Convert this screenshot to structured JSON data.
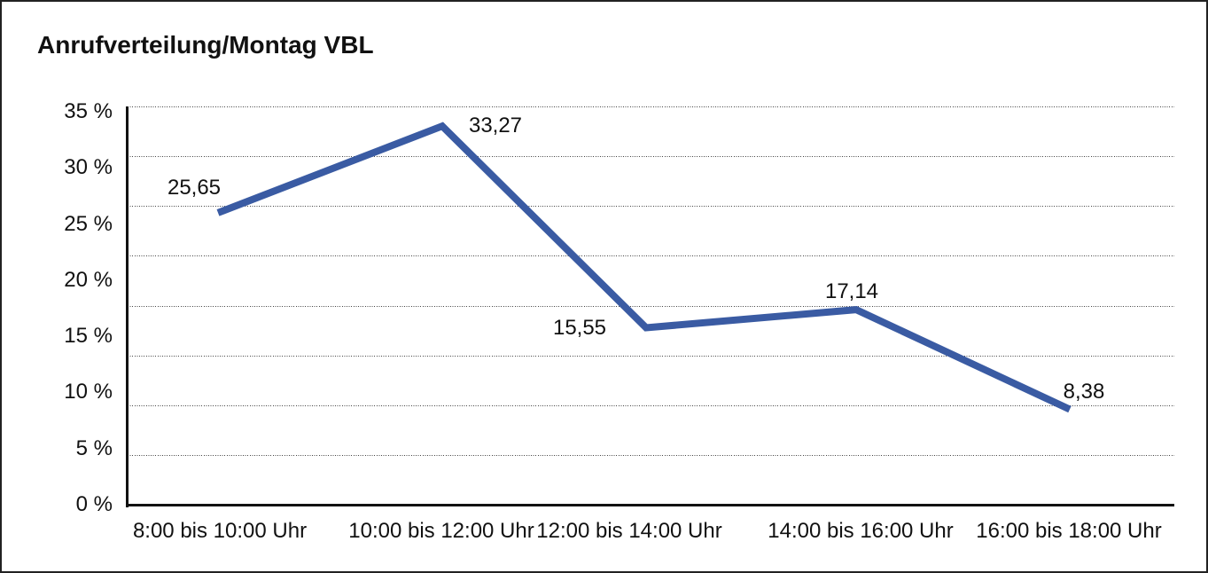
{
  "title": "Anrufverteilung/Montag VBL",
  "colors": {
    "line": "#3A5BA3",
    "axis": "#111111",
    "gridline_dots": "#444444",
    "text": "#111111",
    "background": "#FFFFFF",
    "frame_border": "#222222"
  },
  "chart_data": {
    "type": "line",
    "title": "Anrufverteilung/Montag VBL",
    "categories": [
      "8:00 bis 10:00 Uhr",
      "10:00 bis 12:00 Uhr",
      "12:00 bis 14:00 Uhr",
      "14:00 bis 16:00 Uhr",
      "16:00 bis 18:00 Uhr"
    ],
    "values": [
      25.65,
      33.27,
      15.55,
      17.14,
      8.38
    ],
    "data_labels": [
      "25,65",
      "33,27",
      "15,55",
      "17,14",
      "8,38"
    ],
    "y_tick_labels": [
      "35 %",
      "30 %",
      "25 %",
      "20 %",
      "15 %",
      "10 %",
      "5 %",
      "0 %"
    ],
    "ylim": [
      0,
      35
    ],
    "y_tick_step_percent": 5,
    "grid": "horizontal dotted",
    "legend": "none",
    "xlabel": "",
    "ylabel": ""
  }
}
